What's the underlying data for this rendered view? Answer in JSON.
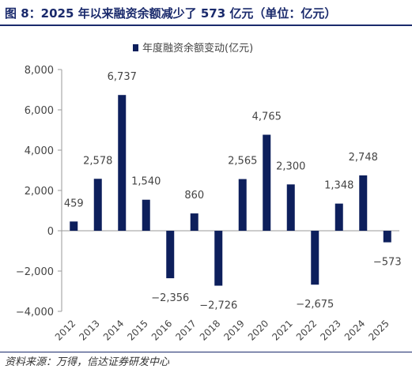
{
  "title": "图 8：2025 年以来融资余额减少了 573 亿元（单位：亿元）",
  "source": "资料来源：万得，信达证券研发中心",
  "colors": {
    "bar": "#0d1f5c",
    "title": "#1a2a6c",
    "axis": "#9a9a9a",
    "text": "#444444"
  },
  "chart_data": {
    "type": "bar",
    "categories": [
      "2012",
      "2013",
      "2014",
      "2015",
      "2016",
      "2017",
      "2018",
      "2019",
      "2020",
      "2021",
      "2022",
      "2023",
      "2024",
      "2025"
    ],
    "series": [
      {
        "name": "年度融资余额变动(亿元)",
        "values": [
          459,
          2578,
          6737,
          1540,
          -2356,
          860,
          -2726,
          2565,
          4765,
          2300,
          -2675,
          1348,
          2748,
          -573
        ]
      }
    ],
    "data_labels": [
      "459",
      "2,578",
      "6,737",
      "1,540",
      "−2,356",
      "860",
      "−2,726",
      "2,565",
      "4,765",
      "2,300",
      "−2,675",
      "1,348",
      "2,748",
      "−573"
    ],
    "y_ticks": [
      -4000,
      -2000,
      0,
      2000,
      4000,
      6000,
      8000
    ],
    "y_tick_labels": [
      "−4,000",
      "−2,000",
      "0",
      "2,000",
      "4,000",
      "6,000",
      "8,000"
    ],
    "ylim": [
      -4000,
      8000
    ],
    "legend_position": "top-center",
    "grid": false
  }
}
